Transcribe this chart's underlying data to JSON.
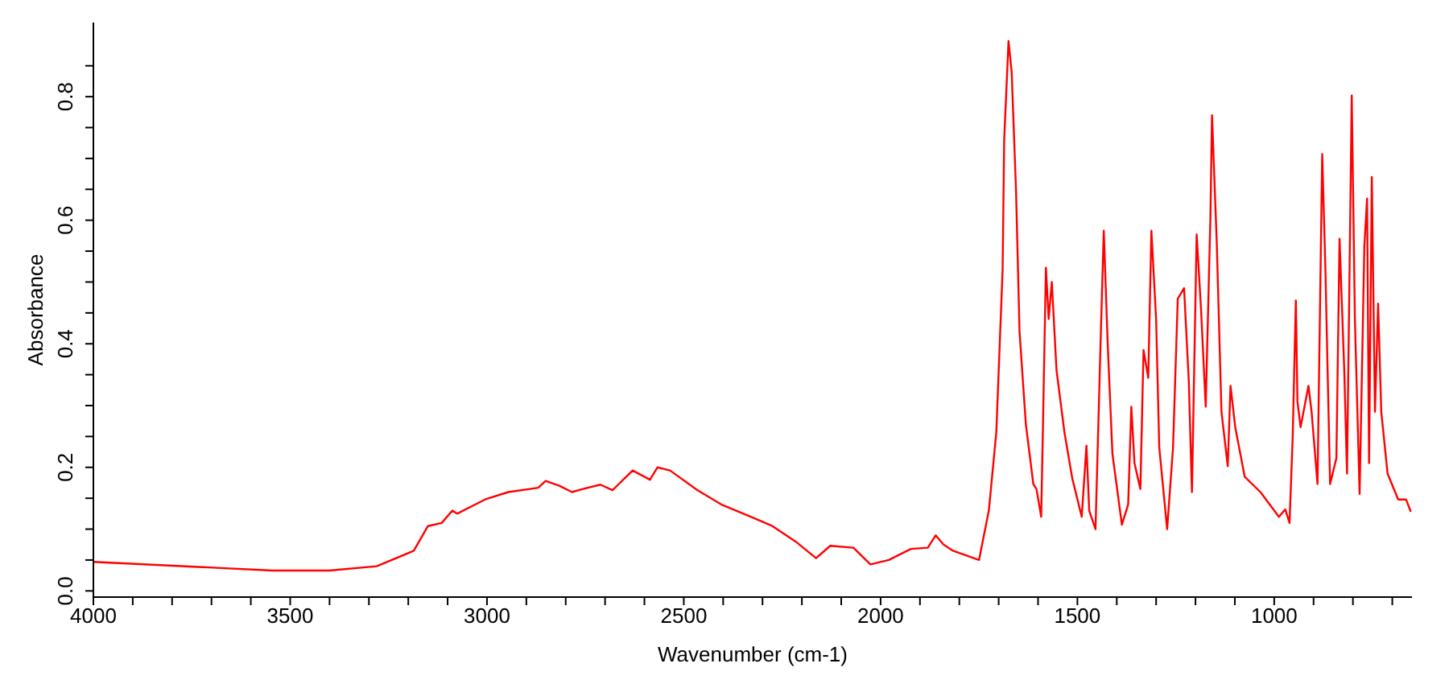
{
  "chart_data": {
    "type": "line",
    "xlabel": "Wavenumber (cm-1)",
    "ylabel": "Absorbance",
    "xlim": [
      4000,
      650
    ],
    "ylim": [
      -0.01,
      0.92
    ],
    "xticks": [
      4000,
      {
        "value": 3900,
        "label": null
      },
      {
        "value": 3800,
        "label": null
      },
      {
        "value": 3700,
        "label": null
      },
      {
        "value": 3600,
        "label": null
      },
      3500,
      {
        "value": 3400,
        "label": null
      },
      {
        "value": 3300,
        "label": null
      },
      {
        "value": 3200,
        "label": null
      },
      {
        "value": 3100,
        "label": null
      },
      3000,
      {
        "value": 2900,
        "label": null
      },
      {
        "value": 2800,
        "label": null
      },
      {
        "value": 2700,
        "label": null
      },
      {
        "value": 2600,
        "label": null
      },
      2500,
      {
        "value": 2400,
        "label": null
      },
      {
        "value": 2300,
        "label": null
      },
      {
        "value": 2200,
        "label": null
      },
      {
        "value": 2100,
        "label": null
      },
      2000,
      {
        "value": 1900,
        "label": null
      },
      {
        "value": 1800,
        "label": null
      },
      {
        "value": 1700,
        "label": null
      },
      {
        "value": 1600,
        "label": null
      },
      1500,
      {
        "value": 1400,
        "label": null
      },
      {
        "value": 1300,
        "label": null
      },
      {
        "value": 1200,
        "label": null
      },
      {
        "value": 1100,
        "label": null
      },
      1000,
      {
        "value": 900,
        "label": null
      },
      {
        "value": 800,
        "label": null
      },
      {
        "value": 700,
        "label": null
      }
    ],
    "yticks": [
      {
        "value": 0,
        "label": "0.0"
      },
      {
        "value": 0.05,
        "label": null
      },
      {
        "value": 0.1,
        "label": null
      },
      {
        "value": 0.15,
        "label": null
      },
      0.2,
      {
        "value": 0.25,
        "label": null
      },
      {
        "value": 0.3,
        "label": null
      },
      {
        "value": 0.35,
        "label": null
      },
      0.4,
      {
        "value": 0.45,
        "label": null
      },
      {
        "value": 0.5,
        "label": null
      },
      {
        "value": 0.55,
        "label": null
      },
      0.6,
      {
        "value": 0.65,
        "label": null
      },
      {
        "value": 0.7,
        "label": null
      },
      {
        "value": 0.75,
        "label": null
      },
      0.8,
      {
        "value": 0.85,
        "label": null
      }
    ],
    "grid": false,
    "legend": false,
    "marker": "none",
    "line_style": "solid",
    "series": [
      {
        "color": "#ff0000",
        "x": [
          4000,
          3545,
          3400,
          3280,
          3186,
          3150,
          3115,
          3088,
          3076,
          3005,
          2946,
          2870,
          2851,
          2815,
          2784,
          2756,
          2712,
          2681,
          2630,
          2586,
          2567,
          2535,
          2465,
          2405,
          2330,
          2275,
          2216,
          2164,
          2128,
          2069,
          2026,
          1979,
          1923,
          1880,
          1860,
          1840,
          1816,
          1750,
          1725,
          1706,
          1690,
          1686,
          1675,
          1667,
          1656,
          1647,
          1631,
          1612,
          1604,
          1592,
          1588,
          1580,
          1573,
          1565,
          1553,
          1533,
          1513,
          1489,
          1477,
          1470,
          1454,
          1442,
          1433,
          1423,
          1411,
          1387,
          1371,
          1363,
          1355,
          1340,
          1332,
          1320,
          1312,
          1300,
          1292,
          1272,
          1257,
          1245,
          1229,
          1217,
          1209,
          1197,
          1186,
          1174,
          1162,
          1158,
          1146,
          1134,
          1118,
          1111,
          1099,
          1075,
          1035,
          988,
          972,
          961,
          953,
          945,
          941,
          933,
          913,
          905,
          890,
          878,
          870,
          858,
          842,
          834,
          822,
          815,
          803,
          795,
          783,
          771,
          764,
          759,
          752,
          744,
          736,
          728,
          712,
          685,
          665,
          653
        ],
        "values": [
          0.047,
          0.033,
          0.033,
          0.04,
          0.065,
          0.105,
          0.11,
          0.13,
          0.125,
          0.148,
          0.16,
          0.167,
          0.178,
          0.17,
          0.16,
          0.165,
          0.172,
          0.163,
          0.195,
          0.18,
          0.2,
          0.195,
          0.163,
          0.14,
          0.12,
          0.105,
          0.08,
          0.053,
          0.073,
          0.07,
          0.043,
          0.05,
          0.068,
          0.07,
          0.09,
          0.075,
          0.065,
          0.05,
          0.13,
          0.257,
          0.52,
          0.73,
          0.89,
          0.84,
          0.65,
          0.42,
          0.27,
          0.173,
          0.165,
          0.12,
          0.25,
          0.523,
          0.44,
          0.5,
          0.357,
          0.257,
          0.182,
          0.12,
          0.235,
          0.13,
          0.1,
          0.382,
          0.583,
          0.4,
          0.222,
          0.107,
          0.14,
          0.298,
          0.207,
          0.165,
          0.39,
          0.345,
          0.583,
          0.44,
          0.232,
          0.1,
          0.232,
          0.473,
          0.49,
          0.34,
          0.16,
          0.577,
          0.457,
          0.298,
          0.607,
          0.77,
          0.565,
          0.29,
          0.202,
          0.332,
          0.265,
          0.185,
          0.16,
          0.12,
          0.132,
          0.11,
          0.25,
          0.47,
          0.307,
          0.265,
          0.332,
          0.29,
          0.173,
          0.707,
          0.523,
          0.173,
          0.215,
          0.57,
          0.357,
          0.19,
          0.802,
          0.44,
          0.157,
          0.557,
          0.635,
          0.207,
          0.67,
          0.29,
          0.465,
          0.29,
          0.19,
          0.148,
          0.148,
          0.128
        ]
      }
    ]
  }
}
